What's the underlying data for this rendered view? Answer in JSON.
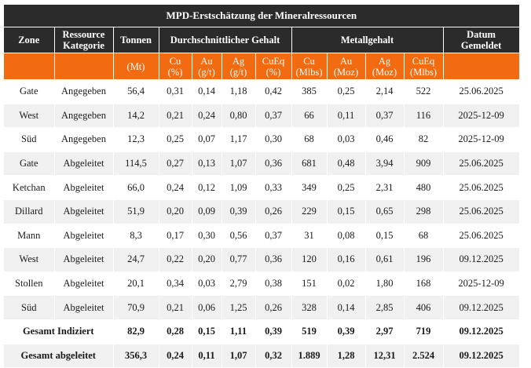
{
  "title": "MPD-Erstschätzung der Mineralressourcen",
  "headers": {
    "zone": "Zone",
    "category_line1": "Ressource",
    "category_line2": "Kategorie",
    "tonnes": "Tonnen",
    "avg_grade": "Durchschnittlicher Gehalt",
    "metal_content": "Metallgehalt",
    "date_line1": "Datum",
    "date_line2": "Gemeldet"
  },
  "units": {
    "tonnes": "(Mt)",
    "cu_grade": [
      "Cu",
      "(%)"
    ],
    "au_grade": [
      "Au",
      "(g/t)"
    ],
    "ag_grade": [
      "Ag",
      "(g/t)"
    ],
    "cueq_grade": [
      "CuEq",
      "(%)"
    ],
    "cu_metal": [
      "Cu",
      "(Mlbs)"
    ],
    "au_metal": [
      "Au",
      "(Moz)"
    ],
    "ag_metal": [
      "Ag",
      "(Moz)"
    ],
    "cueq_metal": [
      "CuEq",
      "(Mlbs)"
    ]
  },
  "rows": [
    {
      "zone": "Gate",
      "category": "Angegeben",
      "tonnes": "56,4",
      "cu": "0,31",
      "au": "0,14",
      "ag": "1,18",
      "cueq": "0,42",
      "cu_m": "385",
      "au_m": "0,25",
      "ag_m": "2,14",
      "cueq_m": "522",
      "date": "25.06.2025"
    },
    {
      "zone": "West",
      "category": "Angegeben",
      "tonnes": "14,2",
      "cu": "0,21",
      "au": "0,24",
      "ag": "0,80",
      "cueq": "0,37",
      "cu_m": "66",
      "au_m": "0,11",
      "ag_m": "0,37",
      "cueq_m": "116",
      "date": "2025-12-09"
    },
    {
      "zone": "Süd",
      "category": "Angegeben",
      "tonnes": "12,3",
      "cu": "0,25",
      "au": "0,07",
      "ag": "1,17",
      "cueq": "0,30",
      "cu_m": "68",
      "au_m": "0,03",
      "ag_m": "0,46",
      "cueq_m": "82",
      "date": "2025-12-09"
    },
    {
      "zone": "Gate",
      "category": "Abgeleitet",
      "tonnes": "114,5",
      "cu": "0,27",
      "au": "0,13",
      "ag": "1,07",
      "cueq": "0,36",
      "cu_m": "681",
      "au_m": "0,48",
      "ag_m": "3,94",
      "cueq_m": "909",
      "date": "25.06.2025"
    },
    {
      "zone": "Ketchan",
      "category": "Abgeleitet",
      "tonnes": "66,0",
      "cu": "0,24",
      "au": "0,12",
      "ag": "1,09",
      "cueq": "0,33",
      "cu_m": "349",
      "au_m": "0,25",
      "ag_m": "2,31",
      "cueq_m": "480",
      "date": "25.06.2025"
    },
    {
      "zone": "Dillard",
      "category": "Abgeleitet",
      "tonnes": "51,9",
      "cu": "0,20",
      "au": "0,09",
      "ag": "0,39",
      "cueq": "0,26",
      "cu_m": "229",
      "au_m": "0,15",
      "ag_m": "0,65",
      "cueq_m": "298",
      "date": "25.06.2025"
    },
    {
      "zone": "Mann",
      "category": "Abgeleitet",
      "tonnes": "8,3",
      "cu": "0,17",
      "au": "0,30",
      "ag": "0,56",
      "cueq": "0,37",
      "cu_m": "31",
      "au_m": "0,08",
      "ag_m": "0,15",
      "cueq_m": "68",
      "date": "25.06.2025"
    },
    {
      "zone": "West",
      "category": "Abgeleitet",
      "tonnes": "24,7",
      "cu": "0,22",
      "au": "0,20",
      "ag": "0,77",
      "cueq": "0,36",
      "cu_m": "120",
      "au_m": "0,16",
      "ag_m": "0,61",
      "cueq_m": "196",
      "date": "09.12.2025"
    },
    {
      "zone": "Stollen",
      "category": "Abgeleitet",
      "tonnes": "20,1",
      "cu": "0,34",
      "au": "0,03",
      "ag": "2,79",
      "cueq": "0,38",
      "cu_m": "151",
      "au_m": "0,02",
      "ag_m": "1,80",
      "cueq_m": "168",
      "date": "2025-12-09"
    },
    {
      "zone": "Süd",
      "category": "Abgeleitet",
      "tonnes": "70,9",
      "cu": "0,21",
      "au": "0,06",
      "ag": "1,25",
      "cueq": "0,26",
      "cu_m": "328",
      "au_m": "0,14",
      "ag_m": "2,85",
      "cueq_m": "406",
      "date": "09.12.2025"
    }
  ],
  "totals": [
    {
      "label": "Gesamt Indiziert",
      "tonnes": "82,9",
      "cu": "0,28",
      "au": "0,15",
      "ag": "1,11",
      "cueq": "0,39",
      "cu_m": "519",
      "au_m": "0,39",
      "ag_m": "2,97",
      "cueq_m": "719",
      "date": "09.12.2025"
    },
    {
      "label": "Gesamt abgeleitet",
      "tonnes": "356,3",
      "cu": "0,24",
      "au": "0,11",
      "ag": "1,07",
      "cueq": "0,32",
      "cu_m": "1.889",
      "au_m": "1,28",
      "ag_m": "12,31",
      "cueq_m": "2.524",
      "date": "09.12.2025"
    }
  ]
}
